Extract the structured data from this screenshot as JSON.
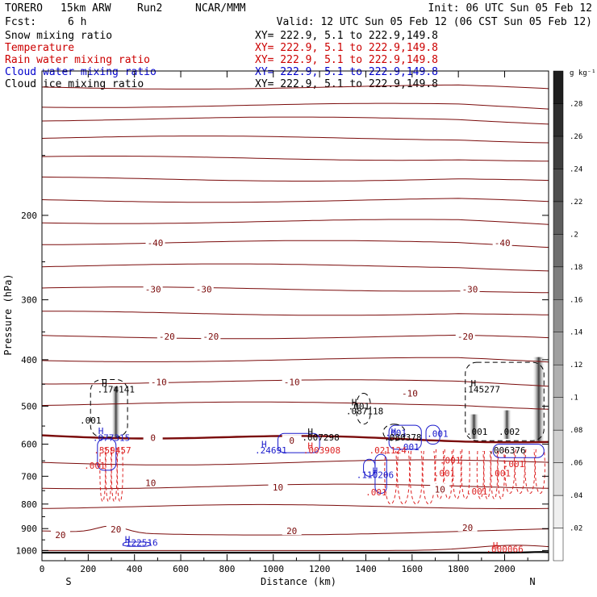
{
  "header": {
    "model": "TORERO",
    "resolution": "15km ARW",
    "run": "Run2",
    "center": "NCAR/MMM",
    "init": "Init: 06 UTC Sun 05 Feb 12",
    "fcst_label": "Fcst:",
    "fcst_value": "6 h",
    "valid": "Valid: 12 UTC Sun 05 Feb 12 (06 CST Sun 05 Feb 12)"
  },
  "legend": [
    {
      "name": "Snow mixing ratio",
      "xy": "XY= 222.9,  5.1 to 222.9,149.8",
      "color": "#000000"
    },
    {
      "name": "Temperature",
      "xy": "XY= 222.9,  5.1 to 222.9,149.8",
      "color": "#cc0000"
    },
    {
      "name": "Rain water mixing ratio",
      "xy": "XY= 222.9,  5.1 to 222.9,149.8",
      "color": "#cc0000"
    },
    {
      "name": "Cloud water mixing ratio",
      "xy": "XY= 222.9,  5.1 to 222.9,149.8",
      "color": "#0000cc"
    },
    {
      "name": "Cloud ice mixing ratio",
      "xy": "XY= 222.9,  5.1 to 222.9,149.8",
      "color": "#000000"
    }
  ],
  "colors": {
    "temperature": "#7a0a0a",
    "freezing": "#7a0a0a",
    "rain": "#dd2222",
    "cloud_water": "#1a1acc",
    "cloud_ice": "#000000",
    "ground": "#000000"
  },
  "chart_data": {
    "type": "cross-section",
    "xlabel": "Distance (km)",
    "ylabel": "Pressure (hPa)",
    "xlim": [
      0,
      2190
    ],
    "ylim": [
      1050,
      100
    ],
    "y_scale": "log",
    "y_inverted": true,
    "xticks": [
      0,
      200,
      400,
      600,
      800,
      1000,
      1200,
      1400,
      1600,
      1800,
      2000
    ],
    "yticks": [
      200,
      300,
      400,
      500,
      600,
      700,
      800,
      900,
      1000
    ],
    "x_end_labels": {
      "left": "S",
      "right": "N"
    },
    "colorbar": {
      "unit": "g kg⁻¹",
      "ticks": [
        ".02",
        ".04",
        ".06",
        ".08",
        ".1",
        ".12",
        ".14",
        ".16",
        ".18",
        ".2",
        ".22",
        ".24",
        ".26",
        ".28"
      ]
    },
    "isotherm_labels": [
      {
        "text": "-40",
        "x": 490,
        "p": 228
      },
      {
        "text": "-40",
        "x": 1990,
        "p": 228
      },
      {
        "text": "-30",
        "x": 480,
        "p": 285
      },
      {
        "text": "-30",
        "x": 700,
        "p": 285
      },
      {
        "text": "-30",
        "x": 1850,
        "p": 285
      },
      {
        "text": "-20",
        "x": 540,
        "p": 358
      },
      {
        "text": "-20",
        "x": 730,
        "p": 358
      },
      {
        "text": "-20",
        "x": 1830,
        "p": 358
      },
      {
        "text": "-10",
        "x": 505,
        "p": 445
      },
      {
        "text": "-10",
        "x": 1080,
        "p": 445
      },
      {
        "text": "-10",
        "x": 1590,
        "p": 470
      },
      {
        "text": "0",
        "x": 480,
        "p": 582
      },
      {
        "text": "0",
        "x": 1080,
        "p": 590
      },
      {
        "text": "10",
        "x": 470,
        "p": 722
      },
      {
        "text": "10",
        "x": 1020,
        "p": 738
      },
      {
        "text": "10",
        "x": 1720,
        "p": 745
      },
      {
        "text": "20",
        "x": 320,
        "p": 902
      },
      {
        "text": "20",
        "x": 80,
        "p": 928
      },
      {
        "text": "20",
        "x": 1080,
        "p": 910
      },
      {
        "text": "20",
        "x": 1840,
        "p": 895
      }
    ],
    "labels": [
      {
        "text": "H",
        "x": 270,
        "p": 448,
        "color": "black"
      },
      {
        "text": ".174141",
        "x": 320,
        "p": 461,
        "color": "black"
      },
      {
        "text": ".001",
        "x": 210,
        "p": 535,
        "color": "black"
      },
      {
        "text": "H",
        "x": 255,
        "p": 563,
        "color": "blue"
      },
      {
        "text": ".077315",
        "x": 300,
        "p": 582,
        "color": "blue"
      },
      {
        "text": ".359457",
        "x": 305,
        "p": 618,
        "color": "red"
      },
      {
        "text": ".001",
        "x": 228,
        "p": 665,
        "color": "red"
      },
      {
        "text": "H",
        "x": 1350,
        "p": 490,
        "color": "black"
      },
      {
        "text": ".001",
        "x": 1370,
        "p": 500,
        "color": "black"
      },
      {
        "text": ".087118",
        "x": 1395,
        "p": 512,
        "color": "black"
      },
      {
        "text": "H",
        "x": 1160,
        "p": 565,
        "color": "black"
      },
      {
        "text": ".007298",
        "x": 1205,
        "p": 580,
        "color": "black"
      },
      {
        "text": "H",
        "x": 1160,
        "p": 605,
        "color": "red"
      },
      {
        "text": ".003908",
        "x": 1210,
        "p": 618,
        "color": "red"
      },
      {
        "text": "H",
        "x": 960,
        "p": 600,
        "color": "blue"
      },
      {
        "text": ".24691",
        "x": 990,
        "p": 618,
        "color": "blue"
      },
      {
        "text": "H",
        "x": 1520,
        "p": 565,
        "color": "blue"
      },
      {
        "text": ".001",
        "x": 1530,
        "p": 568,
        "color": "blue"
      },
      {
        "text": ".001",
        "x": 1710,
        "p": 570,
        "color": "blue"
      },
      {
        "text": ".080378",
        "x": 1560,
        "p": 580,
        "color": "black"
      },
      {
        "text": ".001",
        "x": 1585,
        "p": 608,
        "color": "blue"
      },
      {
        "text": ".021124",
        "x": 1495,
        "p": 618,
        "color": "red"
      },
      {
        "text": "H",
        "x": 1440,
        "p": 682,
        "color": "blue"
      },
      {
        "text": ".110206",
        "x": 1440,
        "p": 695,
        "color": "blue"
      },
      {
        "text": ".001",
        "x": 1445,
        "p": 755,
        "color": "red"
      },
      {
        "text": "H",
        "x": 1865,
        "p": 448,
        "color": "black"
      },
      {
        "text": ".145277",
        "x": 1900,
        "p": 461,
        "color": "black"
      },
      {
        "text": ".001",
        "x": 1880,
        "p": 565,
        "color": "black"
      },
      {
        "text": ".002",
        "x": 2020,
        "p": 565,
        "color": "black"
      },
      {
        "text": ".006376",
        "x": 2010,
        "p": 618,
        "color": "black"
      },
      {
        "text": ".001",
        "x": 1765,
        "p": 648,
        "color": "red"
      },
      {
        "text": ".001",
        "x": 1740,
        "p": 690,
        "color": "red"
      },
      {
        "text": ".001",
        "x": 1980,
        "p": 690,
        "color": "red"
      },
      {
        "text": ".001",
        "x": 2040,
        "p": 660,
        "color": "red"
      },
      {
        "text": ".001",
        "x": 1880,
        "p": 753,
        "color": "red"
      },
      {
        "text": "H",
        "x": 370,
        "p": 948,
        "color": "blue"
      },
      {
        "text": ".122516",
        "x": 420,
        "p": 962,
        "color": "blue"
      },
      {
        "text": "H",
        "x": 1960,
        "p": 975,
        "color": "red"
      },
      {
        "text": ".000066",
        "x": 2000,
        "p": 992,
        "color": "red"
      }
    ]
  }
}
